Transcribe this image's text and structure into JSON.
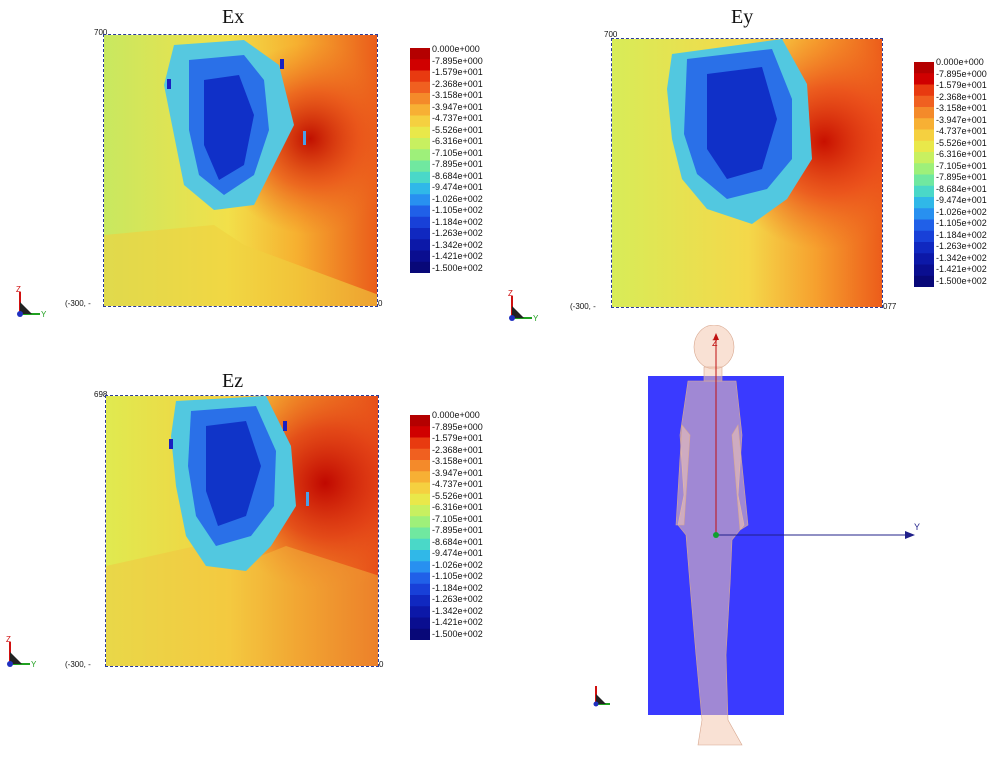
{
  "panels": [
    {
      "id": "ex",
      "title": "Ex",
      "top_label": "700",
      "left_label": "(-300, -",
      "right_label": "0"
    },
    {
      "id": "ey",
      "title": "Ey",
      "top_label": "700",
      "left_label": "(-300, -",
      "right_label": "077"
    },
    {
      "id": "ez",
      "title": "Ez",
      "top_label": "698",
      "left_label": "(-300, -",
      "right_label": "0"
    }
  ],
  "colorbar": {
    "labels": [
      "0.000e+000",
      "-7.895e+000",
      "-1.579e+001",
      "-2.368e+001",
      "-3.158e+001",
      "-3.947e+001",
      "-4.737e+001",
      "-5.526e+001",
      "-6.316e+001",
      "-7.105e+001",
      "-7.895e+001",
      "-8.684e+001",
      "-9.474e+001",
      "-1.026e+002",
      "-1.105e+002",
      "-1.184e+002",
      "-1.263e+002",
      "-1.342e+002",
      "-1.421e+002",
      "-1.500e+002"
    ],
    "colors": [
      "#b40000",
      "#d00000",
      "#e83a10",
      "#f06020",
      "#f48a2a",
      "#f7b034",
      "#f5d040",
      "#e9e84a",
      "#c8f060",
      "#9ef07a",
      "#70e8a0",
      "#4ad8c8",
      "#30b8e8",
      "#2890f0",
      "#2060e8",
      "#1840d8",
      "#1028c0",
      "#0c18a8",
      "#0a0e90",
      "#080878"
    ]
  },
  "axis_triad": {
    "z": "Z",
    "y": "Y"
  },
  "model_view": {
    "z_axis": "Z",
    "y_axis": "Y"
  }
}
